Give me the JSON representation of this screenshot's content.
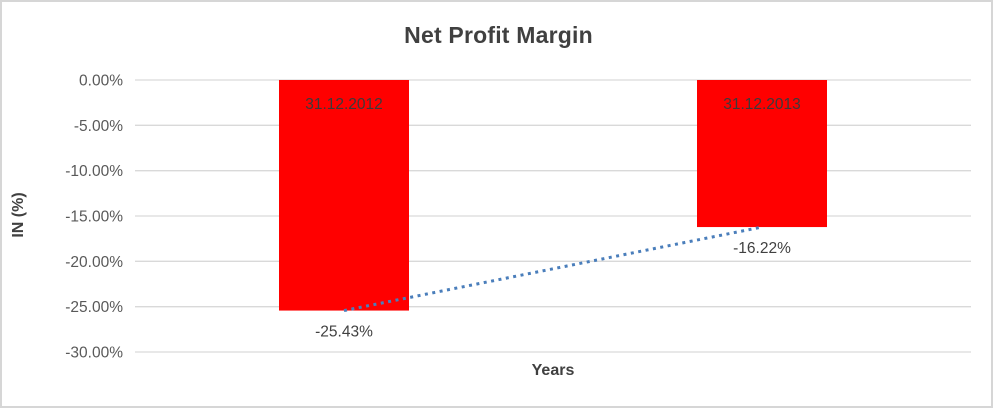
{
  "chart_data": {
    "type": "bar",
    "title": "Net Profit Margin",
    "xlabel": "Years",
    "ylabel": "IN (%)",
    "categories": [
      "31.12.2012",
      "31.12.2013"
    ],
    "values": [
      -25.43,
      -16.22
    ],
    "value_labels": [
      "-25.43%",
      "-16.22%"
    ],
    "ylim": [
      -30,
      0
    ],
    "yticks": [
      0,
      -5,
      -10,
      -15,
      -20,
      -25,
      -30
    ],
    "ytick_labels": [
      "0.00%",
      "-5.00%",
      "-10.00%",
      "-15.00%",
      "-20.00%",
      "-25.00%",
      "-30.00%"
    ],
    "grid": true,
    "legend": "none",
    "trendline": {
      "style": "dotted",
      "from_value": -25.43,
      "to_value": -16.22
    },
    "colors": {
      "bar": "#ff0000",
      "trendline": "#4a7ebb",
      "gridline": "#d9d9d9",
      "title_text": "#404040",
      "tick_text": "#595959",
      "bar_label_text": "#3b3b3b",
      "value_label_text": "#404040",
      "border": "#d6d6d6"
    }
  }
}
